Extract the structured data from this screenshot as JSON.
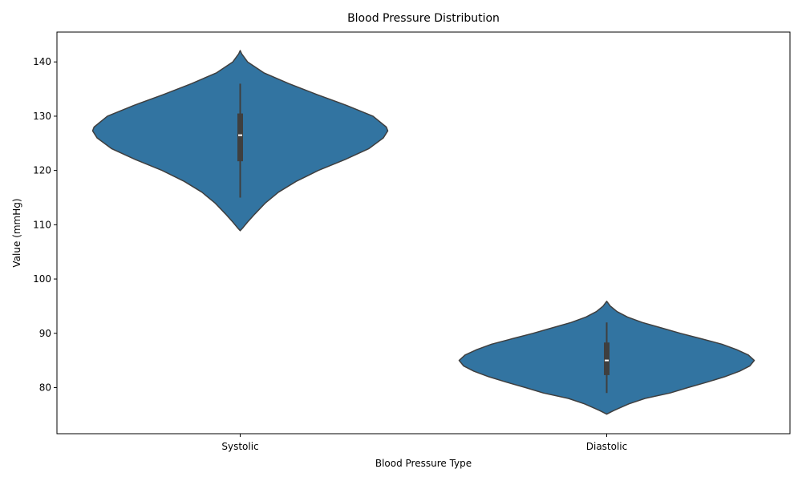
{
  "chart_data": {
    "type": "violin",
    "title": "Blood Pressure Distribution",
    "xlabel": "Blood Pressure Type",
    "ylabel": "Value (mmHg)",
    "categories": [
      "Systolic",
      "Diastolic"
    ],
    "ylim": [
      71.5,
      145.5
    ],
    "yticks": [
      80,
      90,
      100,
      110,
      120,
      130,
      140
    ],
    "grid": false,
    "legend": "none",
    "color": "#3274a1",
    "edge_color": "#3f3f3f",
    "box_color": "#3f3f3f",
    "median_color": "#ffffff",
    "violins": [
      {
        "category": "Systolic",
        "min": 115,
        "q1": 121.7,
        "median": 126.5,
        "q3": 130.5,
        "max": 136,
        "kde_range": [
          108.9,
          142.1
        ],
        "density": [
          [
            108.9,
            0.0
          ],
          [
            109.5,
            0.02
          ],
          [
            110.5,
            0.05
          ],
          [
            112,
            0.1
          ],
          [
            114,
            0.17
          ],
          [
            116,
            0.26
          ],
          [
            118,
            0.38
          ],
          [
            120,
            0.53
          ],
          [
            122,
            0.71
          ],
          [
            124,
            0.87
          ],
          [
            126,
            0.97
          ],
          [
            127.3,
            1.0
          ],
          [
            128,
            0.99
          ],
          [
            130,
            0.9
          ],
          [
            132,
            0.72
          ],
          [
            134,
            0.52
          ],
          [
            136,
            0.33
          ],
          [
            138,
            0.16
          ],
          [
            140,
            0.05
          ],
          [
            141.5,
            0.01
          ],
          [
            142.1,
            0.0
          ]
        ]
      },
      {
        "category": "Diastolic",
        "min": 79,
        "q1": 82.3,
        "median": 85,
        "q3": 88.3,
        "max": 92,
        "kde_range": [
          75.1,
          95.9
        ],
        "density": [
          [
            75.1,
            0.0
          ],
          [
            75.8,
            0.05
          ],
          [
            77,
            0.15
          ],
          [
            78,
            0.26
          ],
          [
            79,
            0.43
          ],
          [
            80,
            0.55
          ],
          [
            81,
            0.68
          ],
          [
            82,
            0.8
          ],
          [
            83,
            0.9
          ],
          [
            84,
            0.97
          ],
          [
            85,
            1.0
          ],
          [
            86,
            0.96
          ],
          [
            87,
            0.88
          ],
          [
            88,
            0.78
          ],
          [
            89,
            0.64
          ],
          [
            90,
            0.5
          ],
          [
            91,
            0.37
          ],
          [
            92,
            0.24
          ],
          [
            93,
            0.14
          ],
          [
            94,
            0.07
          ],
          [
            95,
            0.025
          ],
          [
            95.9,
            0.0
          ]
        ]
      }
    ]
  }
}
